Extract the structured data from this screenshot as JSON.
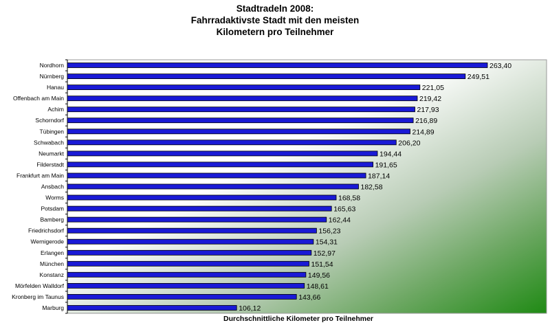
{
  "chart_data": {
    "type": "bar",
    "orientation": "horizontal",
    "title": [
      "Stadtradeln 2008:",
      "Fahrradaktivste Stadt mit den meisten",
      "Kilometern pro Teilnehmer"
    ],
    "xlabel": "Durchschnittliche Kilometer pro Teilnehmer",
    "ylabel": "",
    "xlim": [
      0,
      300
    ],
    "grid": false,
    "legend": "none",
    "categories": [
      "Nordhorn",
      "Nürnberg",
      "Hanau",
      "Offenbach am Main",
      "Achim",
      "Schorndorf",
      "Tübingen",
      "Schwabach",
      "Neumarkt",
      "Filderstadt",
      "Frankfurt am Main",
      "Ansbach",
      "Worms",
      "Potsdam",
      "Bamberg",
      "Friedrichsdorf",
      "Wernigerode",
      "Erlangen",
      "München",
      "Konstanz",
      "Mörfelden Walldorf",
      "Kronberg im Taunus",
      "Marburg"
    ],
    "values": [
      263.4,
      249.51,
      221.05,
      219.42,
      217.93,
      216.89,
      214.89,
      206.2,
      194.44,
      191.65,
      187.14,
      182.58,
      168.58,
      165.63,
      162.44,
      156.23,
      154.31,
      152.97,
      151.54,
      149.56,
      148.61,
      143.66,
      106.12
    ],
    "value_labels": [
      "263,40",
      "249,51",
      "221,05",
      "219,42",
      "217,93",
      "216,89",
      "214,89",
      "206,20",
      "194,44",
      "191,65",
      "187,14",
      "182,58",
      "168,58",
      "165,63",
      "162,44",
      "156,23",
      "154,31",
      "152,97",
      "151,54",
      "149,56",
      "148,61",
      "143,66",
      "106,12"
    ],
    "colors": {
      "bar": "#1a1ad6",
      "bar_edge": "#000000",
      "plot_bg_light": "#ffffff",
      "plot_bg_dark": "#1f8a14"
    }
  }
}
